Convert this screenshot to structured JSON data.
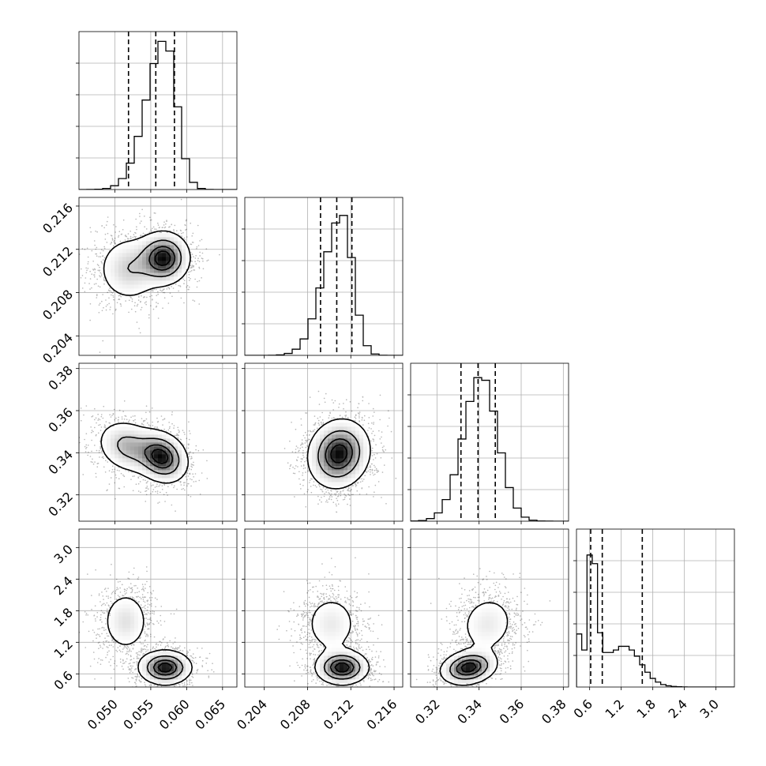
{
  "chart_data": {
    "type": "corner",
    "parameters": [
      {
        "range": [
          0.045,
          0.067
        ],
        "ticks": [
          0.05,
          0.055,
          0.06,
          0.065
        ],
        "tick_labels": [
          "0.050",
          "0.055",
          "0.060",
          "0.065"
        ],
        "hist_peak": 0.057,
        "hist_sd_left": 0.0026,
        "hist_sd_right": 0.0016,
        "hist_ymax": 1.05,
        "quantiles": [
          0.0519,
          0.0557,
          0.0583
        ]
      },
      {
        "range": [
          0.2022,
          0.2168
        ],
        "ticks": [
          0.204,
          0.208,
          0.212,
          0.216
        ],
        "tick_labels": [
          "0.204",
          "0.208",
          "0.212",
          "0.216"
        ],
        "hist_peak": 0.2112,
        "hist_sd_left": 0.0017,
        "hist_sd_right": 0.001,
        "hist_ymax": 1.12,
        "quantiles": [
          0.2092,
          0.2107,
          0.2121
        ]
      },
      {
        "range": [
          0.3075,
          0.3825
        ],
        "ticks": [
          0.32,
          0.34,
          0.36,
          0.38
        ],
        "tick_labels": [
          "0.32",
          "0.34",
          "0.36",
          "0.38"
        ],
        "hist_peak": 0.341,
        "hist_sd_left": 0.0085,
        "hist_sd_right": 0.0078,
        "hist_ymax": 1.08,
        "quantiles": [
          0.3314,
          0.3395,
          0.3477
        ]
      },
      {
        "range": [
          0.35,
          3.35
        ],
        "ticks": [
          0.6,
          1.2,
          1.8,
          2.4,
          3.0
        ],
        "tick_labels": [
          "0.6",
          "1.2",
          "1.8",
          "2.4",
          "3.0"
        ],
        "hist_ymax": 1.28,
        "hist_bins": [
          0.43,
          0.3,
          1.07,
          1.0,
          0.44,
          0.28,
          0.28,
          0.3,
          0.33,
          0.33,
          0.3,
          0.25,
          0.18,
          0.12,
          0.07,
          0.04,
          0.02,
          0.01,
          0.005,
          0.002,
          0.001,
          0.0,
          0.0,
          0.0,
          0.0,
          0.0,
          0.0,
          0.0,
          0.0,
          0.0
        ],
        "quantiles": [
          0.62,
          0.84,
          1.6
        ]
      }
    ],
    "pairs": [
      {
        "row": 1,
        "col": 0,
        "blobs": [
          {
            "mx": 0.0568,
            "my": 0.2112,
            "sx": 0.0018,
            "sy": 0.0012,
            "rho": 0.0,
            "w": 0.6
          },
          {
            "mx": 0.052,
            "my": 0.2102,
            "sx": 0.0023,
            "sy": 0.0016,
            "rho": 0.0,
            "w": 0.4
          }
        ]
      },
      {
        "row": 2,
        "col": 0,
        "blobs": [
          {
            "mx": 0.0565,
            "my": 0.338,
            "sx": 0.0018,
            "sy": 0.006,
            "rho": -0.2,
            "w": 0.6
          },
          {
            "mx": 0.0518,
            "my": 0.343,
            "sx": 0.0022,
            "sy": 0.0065,
            "rho": -0.2,
            "w": 0.4
          }
        ]
      },
      {
        "row": 2,
        "col": 1,
        "blobs": [
          {
            "mx": 0.2109,
            "my": 0.3395,
            "sx": 0.0014,
            "sy": 0.008,
            "rho": 0.1,
            "w": 1.0
          }
        ]
      },
      {
        "row": 3,
        "col": 0,
        "blobs": [
          {
            "mx": 0.057,
            "my": 0.72,
            "sx": 0.0018,
            "sy": 0.16,
            "rho": 0.0,
            "w": 0.62
          },
          {
            "mx": 0.0515,
            "my": 1.6,
            "sx": 0.0018,
            "sy": 0.32,
            "rho": 0.0,
            "w": 0.38
          }
        ]
      },
      {
        "row": 3,
        "col": 1,
        "blobs": [
          {
            "mx": 0.2112,
            "my": 0.72,
            "sx": 0.0012,
            "sy": 0.16,
            "rho": 0.0,
            "w": 0.62
          },
          {
            "mx": 0.2102,
            "my": 1.55,
            "sx": 0.0014,
            "sy": 0.32,
            "rho": 0.0,
            "w": 0.38
          }
        ]
      },
      {
        "row": 3,
        "col": 2,
        "blobs": [
          {
            "mx": 0.335,
            "my": 0.72,
            "sx": 0.0065,
            "sy": 0.16,
            "rho": 0.2,
            "w": 0.62
          },
          {
            "mx": 0.344,
            "my": 1.55,
            "sx": 0.0075,
            "sy": 0.32,
            "rho": 0.1,
            "w": 0.38
          }
        ]
      }
    ],
    "grid": true,
    "quantile_line_style": "dashed",
    "contour_levels": [
      0.118,
      0.393,
      0.675,
      0.864
    ]
  }
}
